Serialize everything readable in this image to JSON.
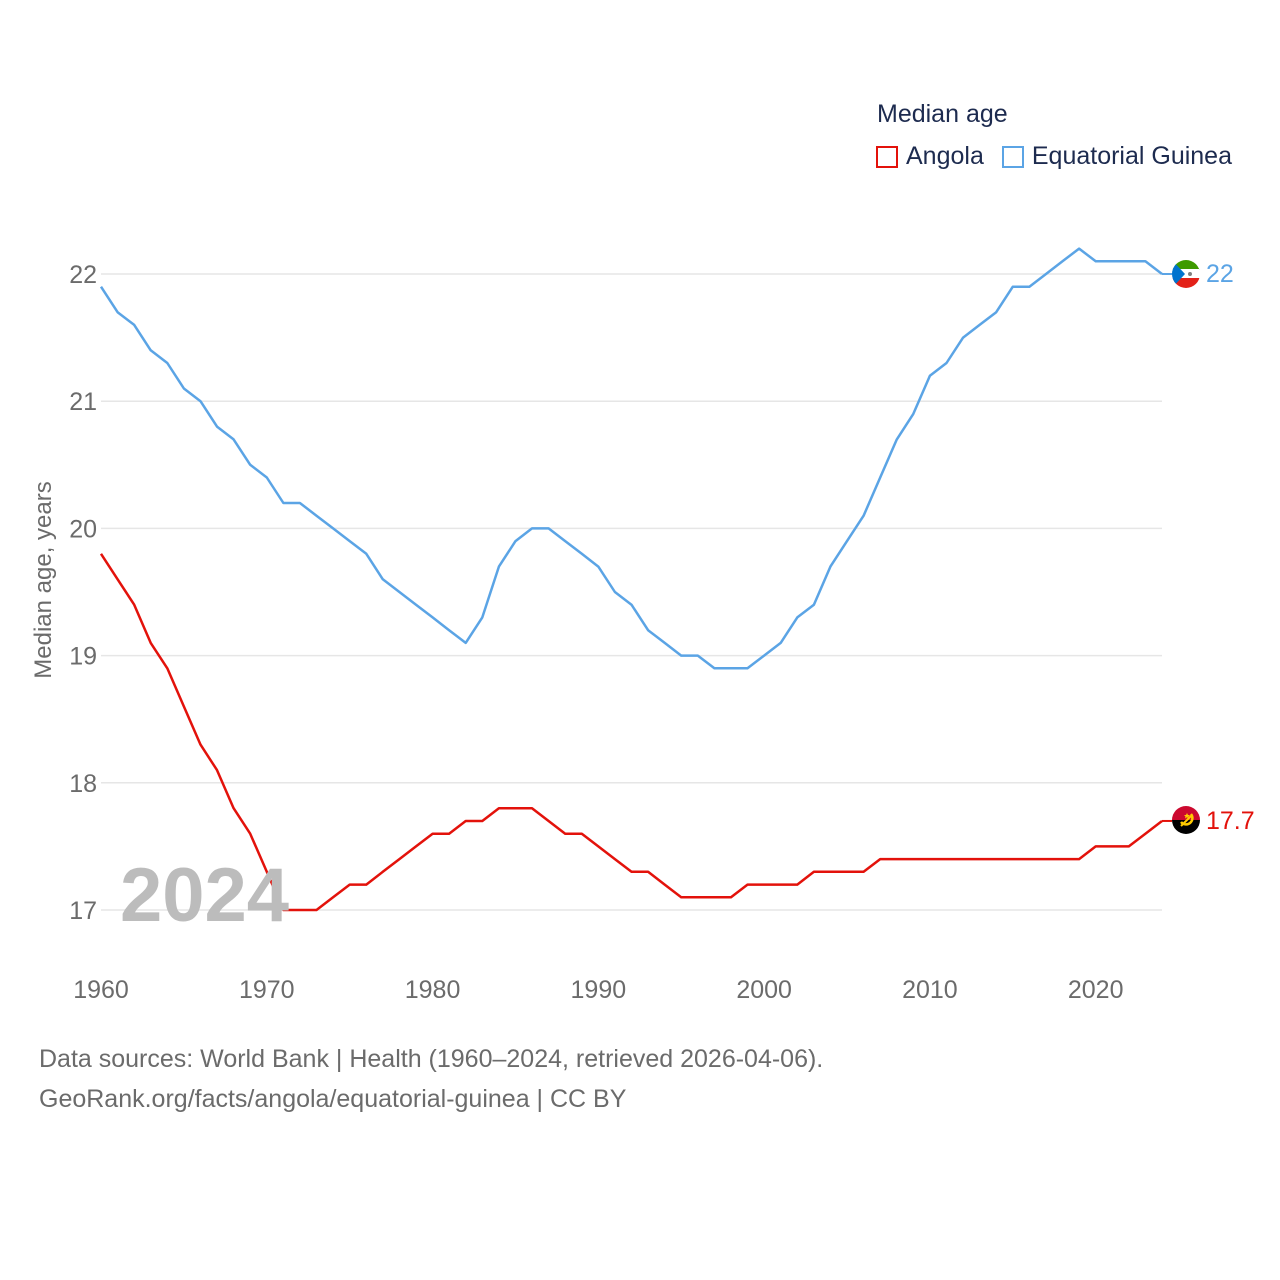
{
  "chart_data": {
    "type": "line",
    "title": "Median age",
    "xlabel": "",
    "ylabel": "Median age, years",
    "x": [
      1960,
      1961,
      1962,
      1963,
      1964,
      1965,
      1966,
      1967,
      1968,
      1969,
      1970,
      1971,
      1972,
      1973,
      1974,
      1975,
      1976,
      1977,
      1978,
      1979,
      1980,
      1981,
      1982,
      1983,
      1984,
      1985,
      1986,
      1987,
      1988,
      1989,
      1990,
      1991,
      1992,
      1993,
      1994,
      1995,
      1996,
      1997,
      1998,
      1999,
      2000,
      2001,
      2002,
      2003,
      2004,
      2005,
      2006,
      2007,
      2008,
      2009,
      2010,
      2011,
      2012,
      2013,
      2014,
      2015,
      2016,
      2017,
      2018,
      2019,
      2020,
      2021,
      2022,
      2023,
      2024
    ],
    "xlim": [
      1960,
      2024
    ],
    "ylim": [
      16.8,
      22.3
    ],
    "xticks": [
      1960,
      1970,
      1980,
      1990,
      2000,
      2010,
      2020
    ],
    "yticks": [
      17,
      18,
      19,
      20,
      21,
      22
    ],
    "grid": true,
    "legend_position": "top-right",
    "series": [
      {
        "name": "Angola",
        "color": "#e3120b",
        "end_label": "17.7",
        "flag": "angola-flag",
        "values": [
          19.8,
          19.6,
          19.4,
          19.1,
          18.9,
          18.6,
          18.3,
          18.1,
          17.8,
          17.6,
          17.3,
          17.0,
          17.0,
          17.0,
          17.1,
          17.2,
          17.2,
          17.3,
          17.4,
          17.5,
          17.6,
          17.6,
          17.7,
          17.7,
          17.8,
          17.8,
          17.8,
          17.7,
          17.6,
          17.6,
          17.5,
          17.4,
          17.3,
          17.3,
          17.2,
          17.1,
          17.1,
          17.1,
          17.1,
          17.2,
          17.2,
          17.2,
          17.2,
          17.3,
          17.3,
          17.3,
          17.3,
          17.4,
          17.4,
          17.4,
          17.4,
          17.4,
          17.4,
          17.4,
          17.4,
          17.4,
          17.4,
          17.4,
          17.4,
          17.4,
          17.5,
          17.5,
          17.5,
          17.6,
          17.7
        ]
      },
      {
        "name": "Equatorial Guinea",
        "color": "#5ba4e5",
        "end_label": "22",
        "flag": "equatorial-guinea-flag",
        "values": [
          21.9,
          21.7,
          21.6,
          21.4,
          21.3,
          21.1,
          21.0,
          20.8,
          20.7,
          20.5,
          20.4,
          20.2,
          20.2,
          20.1,
          20.0,
          19.9,
          19.8,
          19.6,
          19.5,
          19.4,
          19.3,
          19.2,
          19.1,
          19.3,
          19.7,
          19.9,
          20.0,
          20.0,
          19.9,
          19.8,
          19.7,
          19.5,
          19.4,
          19.2,
          19.1,
          19.0,
          19.0,
          18.9,
          18.9,
          18.9,
          19.0,
          19.1,
          19.3,
          19.4,
          19.7,
          19.9,
          20.1,
          20.4,
          20.7,
          20.9,
          21.2,
          21.3,
          21.5,
          21.6,
          21.7,
          21.9,
          21.9,
          22.0,
          22.1,
          22.2,
          22.1,
          22.1,
          22.1,
          22.1,
          22.0
        ]
      }
    ]
  },
  "legend": {
    "title": "Median age",
    "items": [
      "Angola",
      "Equatorial Guinea"
    ]
  },
  "year_label": "2024",
  "source": {
    "line1": "Data sources: World Bank | Health (1960–2024, retrieved 2026-04-06).",
    "line2": "GeoRank.org/facts/angola/equatorial-guinea | CC BY"
  }
}
